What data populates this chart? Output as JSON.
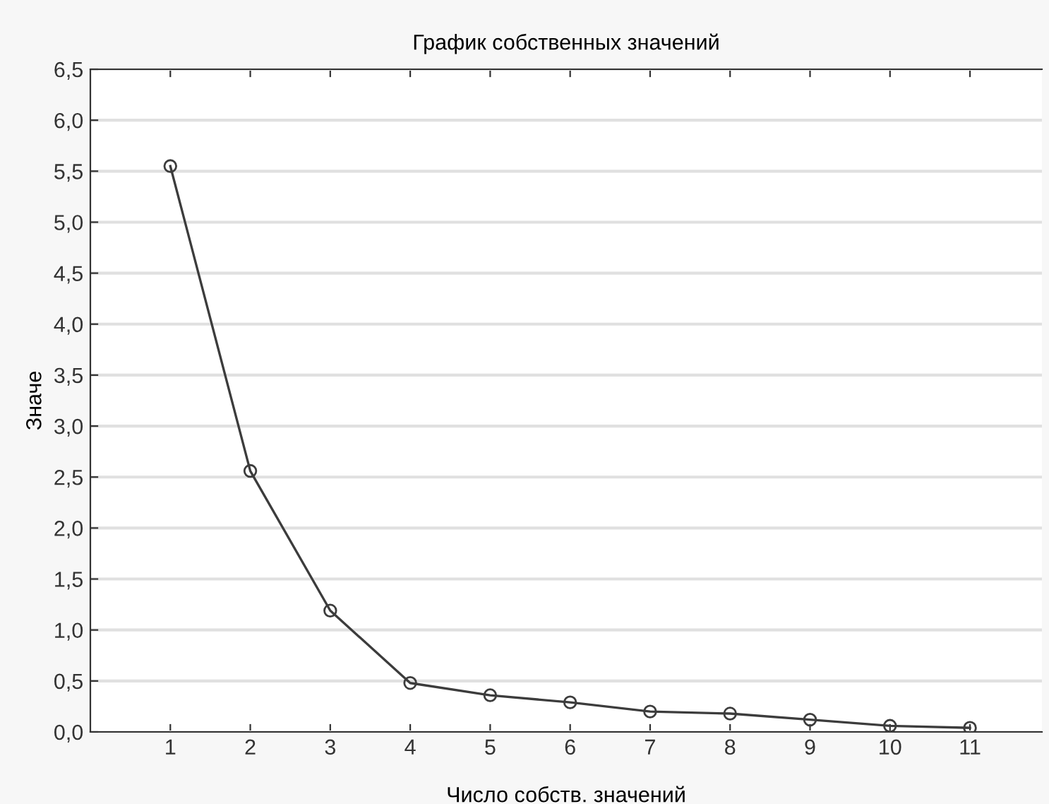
{
  "chart_data": {
    "type": "line",
    "title": "График собственных значений",
    "xlabel": "Число собств. значений",
    "ylabel": "Значе",
    "x": [
      1,
      2,
      3,
      4,
      5,
      6,
      7,
      8,
      9,
      10,
      11
    ],
    "series": [
      {
        "color": "#3c3c3c",
        "values": [
          5.55,
          2.56,
          1.19,
          0.48,
          0.36,
          0.29,
          0.2,
          0.18,
          0.12,
          0.06,
          0.04
        ]
      }
    ],
    "xlim": [
      0,
      11.9
    ],
    "xticks": [
      1,
      2,
      3,
      4,
      5,
      6,
      7,
      8,
      9,
      10,
      11
    ],
    "ylim": [
      0,
      6.5
    ],
    "yticks": [
      {
        "value": 0,
        "label": "0,0"
      },
      {
        "value": 0.5,
        "label": "0,5"
      },
      {
        "value": 1,
        "label": "1,0"
      },
      {
        "value": 1.5,
        "label": "1,5"
      },
      {
        "value": 2,
        "label": "2,0"
      },
      {
        "value": 2.5,
        "label": "2,5"
      },
      {
        "value": 3,
        "label": "3,0"
      },
      {
        "value": 3.5,
        "label": "3,5"
      },
      {
        "value": 4,
        "label": "4,0"
      },
      {
        "value": 4.5,
        "label": "4,5"
      },
      {
        "value": 5,
        "label": "5,0"
      },
      {
        "value": 5.5,
        "label": "5,5"
      },
      {
        "value": 6,
        "label": "6,0"
      },
      {
        "value": 6.5,
        "label": "6,5"
      }
    ],
    "grid": "y",
    "marker": "circle",
    "line_style": "solid"
  }
}
